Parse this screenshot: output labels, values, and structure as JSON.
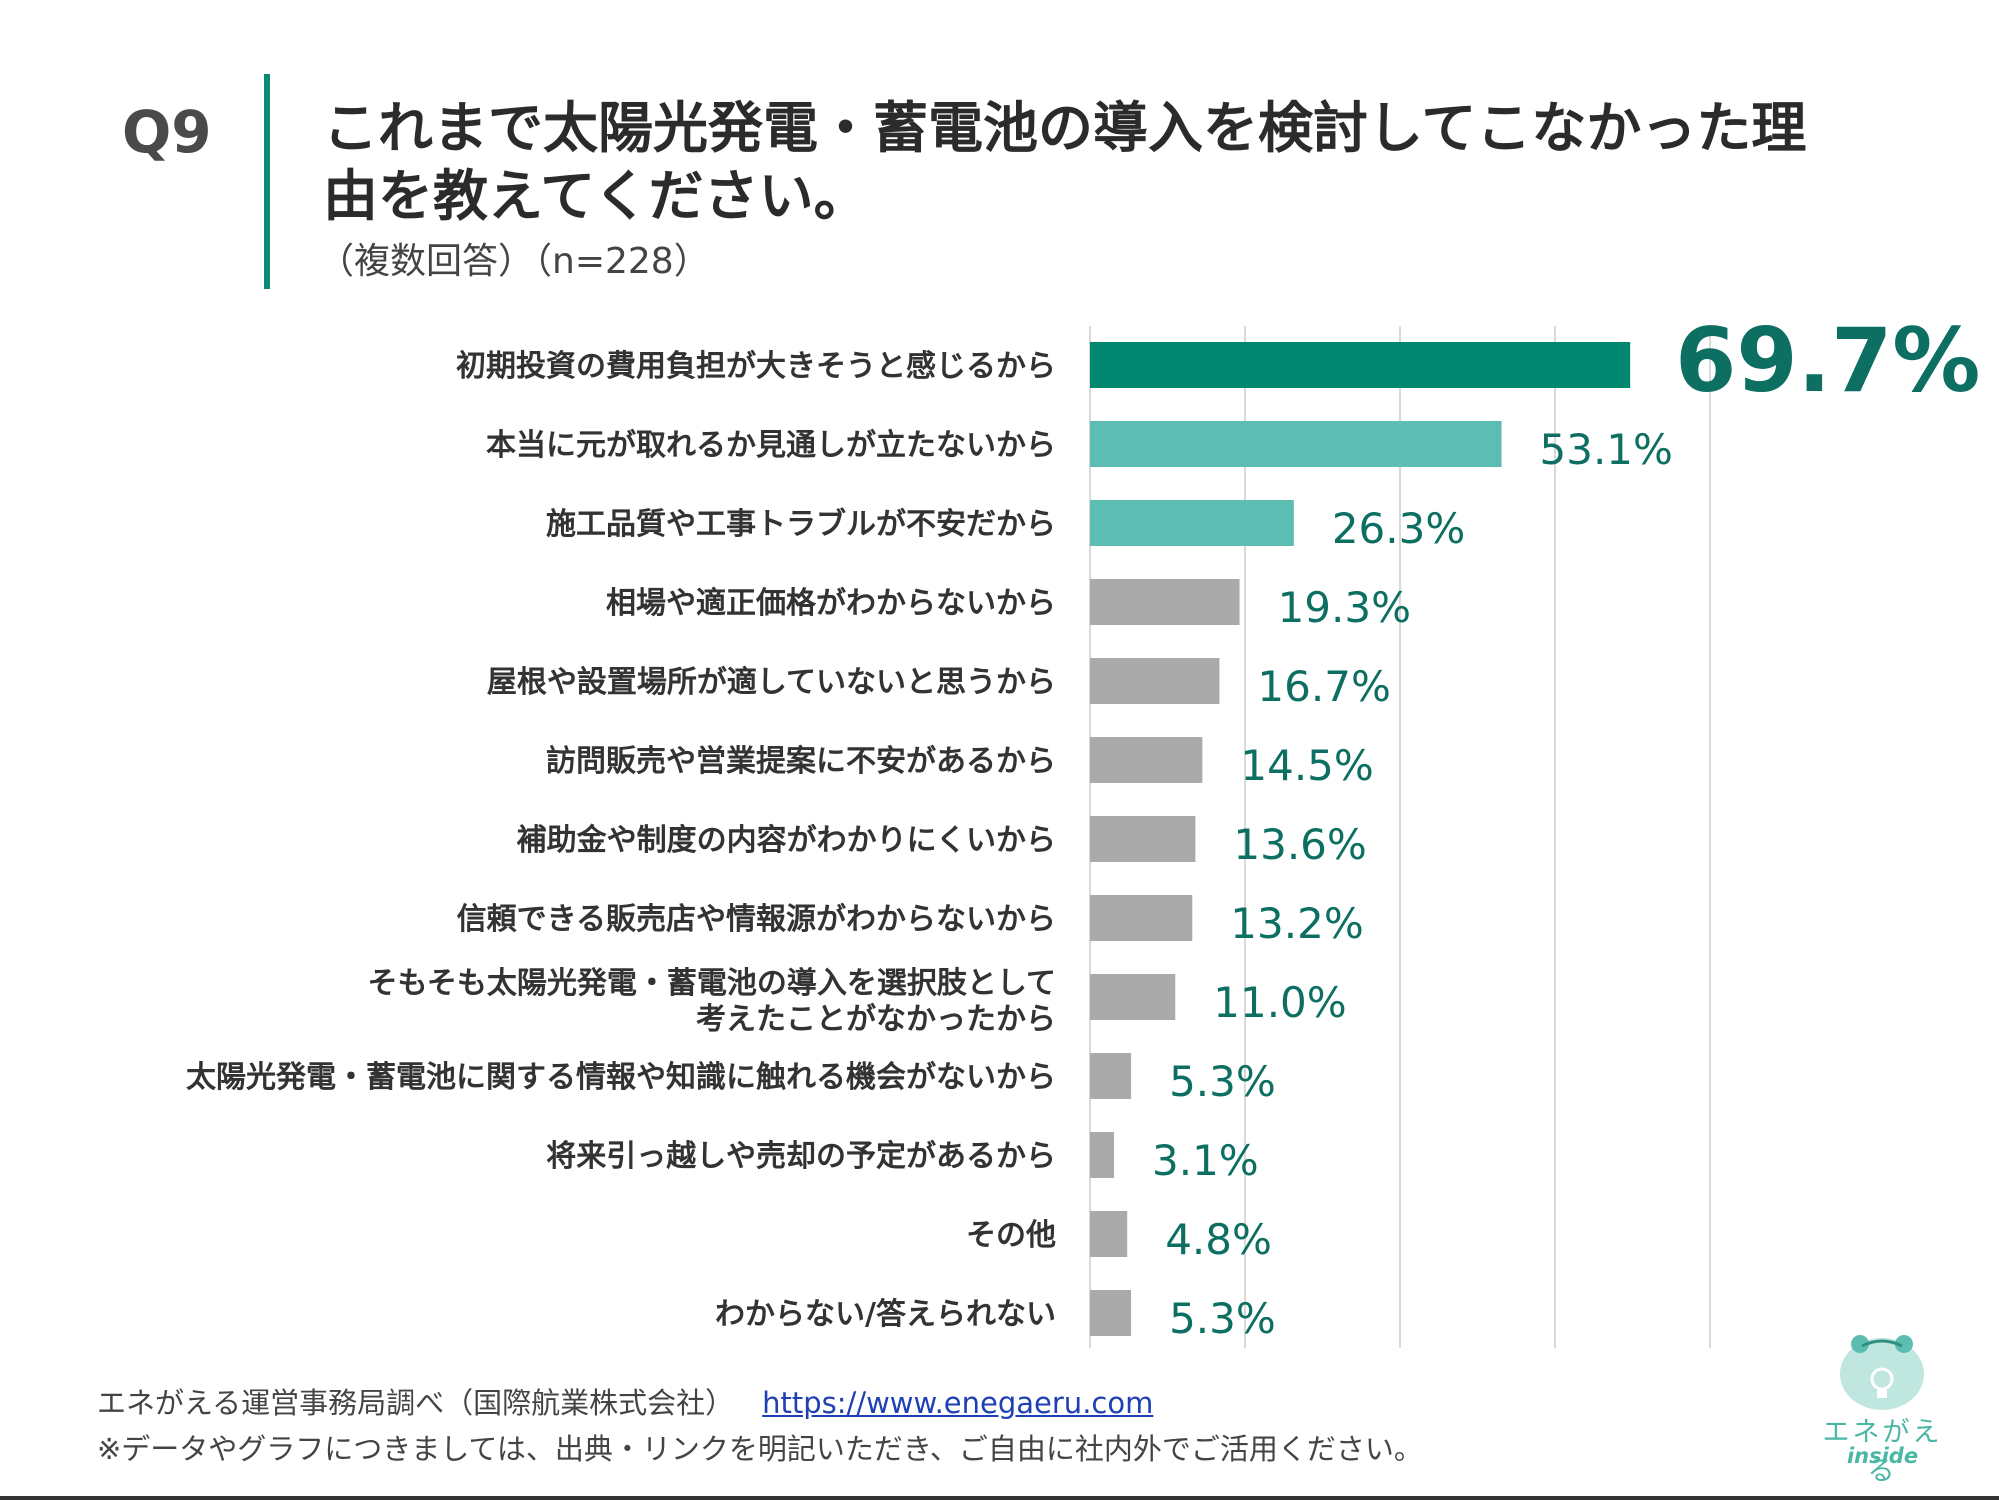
{
  "header": {
    "question": "Q9",
    "title": "これまで太陽光発電・蓄電池の導入を検討してこなかった理由を教えてください。",
    "subtitle": "（複数回答）（n=228）"
  },
  "colors": {
    "accent": "#00876f",
    "secondary": "#5cbdb2",
    "neutral": "#aaaaaa",
    "value_text": "#0c6f61",
    "grid": "#d9d9d9"
  },
  "chart_data": {
    "type": "bar",
    "orientation": "horizontal",
    "categories": [
      [
        "初期投資の費用負担が大きそうと感じるから"
      ],
      [
        "本当に元が取れるか見通しが立たないから"
      ],
      [
        "施工品質や工事トラブルが不安だから"
      ],
      [
        "相場や適正価格がわからないから"
      ],
      [
        "屋根や設置場所が適していないと思うから"
      ],
      [
        "訪問販売や営業提案に不安があるから"
      ],
      [
        "補助金や制度の内容がわかりにくいから"
      ],
      [
        "信頼できる販売店や情報源がわからないから"
      ],
      [
        "そもそも太陽光発電・蓄電池の導入を選択肢として",
        "考えたことがなかったから"
      ],
      [
        "太陽光発電・蓄電池に関する情報や知識に触れる機会がないから"
      ],
      [
        "将来引っ越しや売却の予定があるから"
      ],
      [
        "その他"
      ],
      [
        "わからない/答えられない"
      ]
    ],
    "values": [
      69.7,
      53.1,
      26.3,
      19.3,
      16.7,
      14.5,
      13.6,
      13.2,
      11.0,
      5.3,
      3.1,
      4.8,
      5.3
    ],
    "value_labels": [
      "69.7%",
      "53.1%",
      "26.3%",
      "19.3%",
      "16.7%",
      "14.5%",
      "13.6%",
      "13.2%",
      "11.0%",
      "5.3%",
      "3.1%",
      "4.8%",
      "5.3%"
    ],
    "bar_colors": [
      "#00876f",
      "#5cbdb2",
      "#5cbdb2",
      "#aaaaaa",
      "#aaaaaa",
      "#aaaaaa",
      "#aaaaaa",
      "#aaaaaa",
      "#aaaaaa",
      "#aaaaaa",
      "#aaaaaa",
      "#aaaaaa",
      "#aaaaaa"
    ],
    "highlight_index": 0,
    "xlim": [
      0,
      100
    ],
    "x_gridlines": [
      0,
      20,
      40,
      60,
      80
    ],
    "grid": true,
    "legend": "none"
  },
  "footer": {
    "source": "エネがえる運営事務局調べ（国際航業株式会社）",
    "url": "https://www.enegaeru.com",
    "note": "※データやグラフにつきましては、出典・リンクを明記いただき、ご自由に社内外でご活用ください。"
  },
  "logo": {
    "name": "エネがえる",
    "sub": "inside",
    "icon": "frog-bulb-icon"
  }
}
